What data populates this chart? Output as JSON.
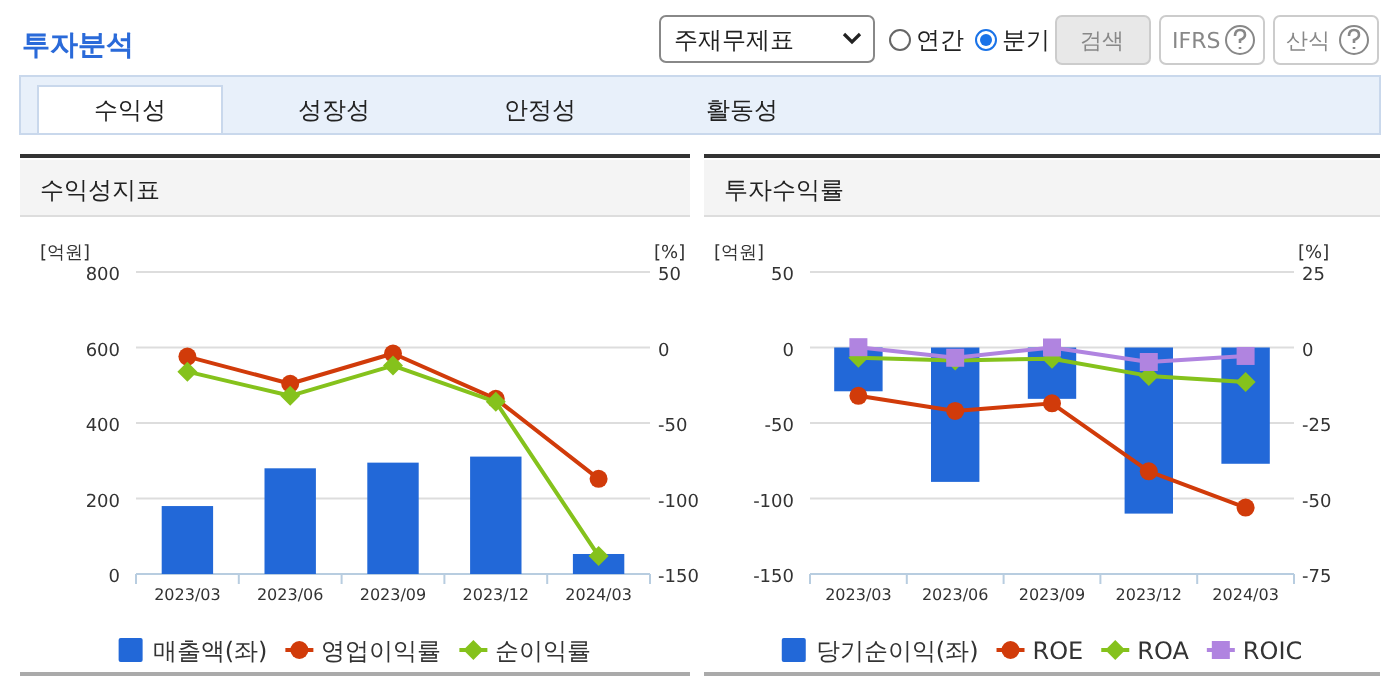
{
  "chart_data": [
    {
      "type": "other",
      "annotations": [
        "투자분석",
        "주재무제표",
        "연간",
        "분기",
        "검색",
        "IFRS",
        "산식",
        "수익성",
        "성장성",
        "안정성",
        "활동성"
      ]
    },
    {
      "type": "bar",
      "title": "수익성지표",
      "ylabel": "[억원]",
      "y2label": "[%]",
      "categories": [
        "2023/03",
        "2023/06",
        "2023/09",
        "2023/12",
        "2024/03"
      ],
      "ylim": [
        0,
        800
      ],
      "yticks": [
        0,
        200,
        400,
        600,
        800
      ],
      "y2lim": [
        -150,
        50
      ],
      "y2ticks": [
        -150,
        -100,
        -50,
        0,
        50
      ],
      "grid": "y",
      "legend": "bottom",
      "series": [
        {
          "name": "매출액(좌)",
          "type": "bar",
          "color": "#2268d8",
          "values": [
            180,
            280,
            295,
            311,
            53
          ]
        },
        {
          "name": "영업이익률",
          "type": "line",
          "axis": "y2",
          "marker": "circle",
          "color": "#d13b0a",
          "values": [
            -6,
            -24,
            -4,
            -34,
            -87
          ]
        },
        {
          "name": "순이익률",
          "type": "line",
          "axis": "y2",
          "marker": "diamond",
          "color": "#85c21c",
          "values": [
            -16,
            -32,
            -12,
            -36,
            -138
          ]
        }
      ]
    },
    {
      "type": "bar",
      "title": "투자수익률",
      "ylabel": "[억원]",
      "y2label": "[%]",
      "categories": [
        "2023/03",
        "2023/06",
        "2023/09",
        "2023/12",
        "2024/03"
      ],
      "ylim": [
        -150,
        50
      ],
      "yticks": [
        -150,
        -100,
        -50,
        0,
        50
      ],
      "y2lim": [
        -75,
        25
      ],
      "y2ticks": [
        -75,
        -50,
        -25,
        0,
        25
      ],
      "grid": "y",
      "legend": "bottom",
      "series": [
        {
          "name": "당기순이익(좌)",
          "type": "bar",
          "color": "#2268d8",
          "values": [
            -29,
            -89,
            -34,
            -110,
            -77
          ]
        },
        {
          "name": "ROE",
          "type": "line",
          "axis": "y2",
          "marker": "circle",
          "color": "#d13b0a",
          "values": [
            -16,
            -21,
            -18.5,
            -41,
            -53
          ]
        },
        {
          "name": "ROA",
          "type": "line",
          "axis": "y2",
          "marker": "diamond",
          "color": "#85c21c",
          "values": [
            -3.4,
            -4.3,
            -3.7,
            -9.4,
            -11.4
          ]
        },
        {
          "name": "ROIC",
          "type": "line",
          "axis": "y2",
          "marker": "square",
          "color": "#b084e0",
          "values": [
            0.1,
            -3.4,
            0,
            -4.8,
            -2.8
          ]
        }
      ]
    }
  ]
}
